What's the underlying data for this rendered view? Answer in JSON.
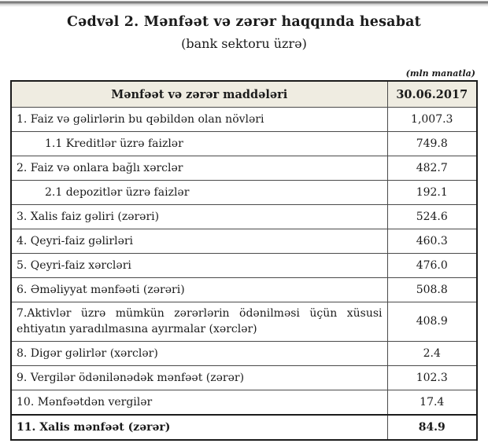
{
  "page": {
    "title": "Cədvəl 2. Mənfəət və zərər haqqında hesabat",
    "subtitle": "(bank sektoru üzrə)",
    "unit_note": "(mln manatla)"
  },
  "table": {
    "columns": [
      "Mənfəət və zərər maddələri",
      "30.06.2017"
    ],
    "rows": [
      {
        "label": "1. Faiz və gəlirlərin bu qəbildən olan növləri",
        "value": "1,007.3",
        "indent": false,
        "justify": false,
        "bold": false,
        "thick_top": false
      },
      {
        "label": "1.1 Kreditlər üzrə faizlər",
        "value": "749.8",
        "indent": true,
        "justify": false,
        "bold": false,
        "thick_top": false
      },
      {
        "label": "2. Faiz və onlara bağlı xərclər",
        "value": "482.7",
        "indent": false,
        "justify": false,
        "bold": false,
        "thick_top": false
      },
      {
        "label": "2.1 depozitlər üzrə faizlər",
        "value": "192.1",
        "indent": true,
        "justify": false,
        "bold": false,
        "thick_top": false
      },
      {
        "label": "3. Xalis faiz gəliri (zərəri)",
        "value": "524.6",
        "indent": false,
        "justify": false,
        "bold": false,
        "thick_top": false
      },
      {
        "label": "4. Qeyri-faiz gəlirləri",
        "value": "460.3",
        "indent": false,
        "justify": false,
        "bold": false,
        "thick_top": false
      },
      {
        "label": "5. Qeyri-faiz xərcləri",
        "value": "476.0",
        "indent": false,
        "justify": false,
        "bold": false,
        "thick_top": false
      },
      {
        "label": "6. Əməliyyat mənfəəti (zərəri)",
        "value": "508.8",
        "indent": false,
        "justify": false,
        "bold": false,
        "thick_top": false
      },
      {
        "label": "7.Aktivlər üzrə mümkün zərərlərin ödənilməsi üçün xüsusi ehtiyatın yaradılmasına ayırmalar (xərclər)",
        "value": "408.9",
        "indent": false,
        "justify": true,
        "bold": false,
        "thick_top": false
      },
      {
        "label": "8. Digər gəlirlər (xərclər)",
        "value": "2.4",
        "indent": false,
        "justify": false,
        "bold": false,
        "thick_top": false
      },
      {
        "label": "9. Vergilər ödənilənədək mənfəət (zərər)",
        "value": "102.3",
        "indent": false,
        "justify": false,
        "bold": false,
        "thick_top": false
      },
      {
        "label": "10. Mənfəətdən vergilər",
        "value": "17.4",
        "indent": false,
        "justify": false,
        "bold": false,
        "thick_top": false
      },
      {
        "label": "11. Xalis mənfəət (zərər)",
        "value": "84.9",
        "indent": false,
        "justify": false,
        "bold": true,
        "thick_top": true
      }
    ]
  },
  "colors": {
    "header_bg": "#efece1",
    "border": "#1b1b1b",
    "text": "#1b1b1b"
  }
}
